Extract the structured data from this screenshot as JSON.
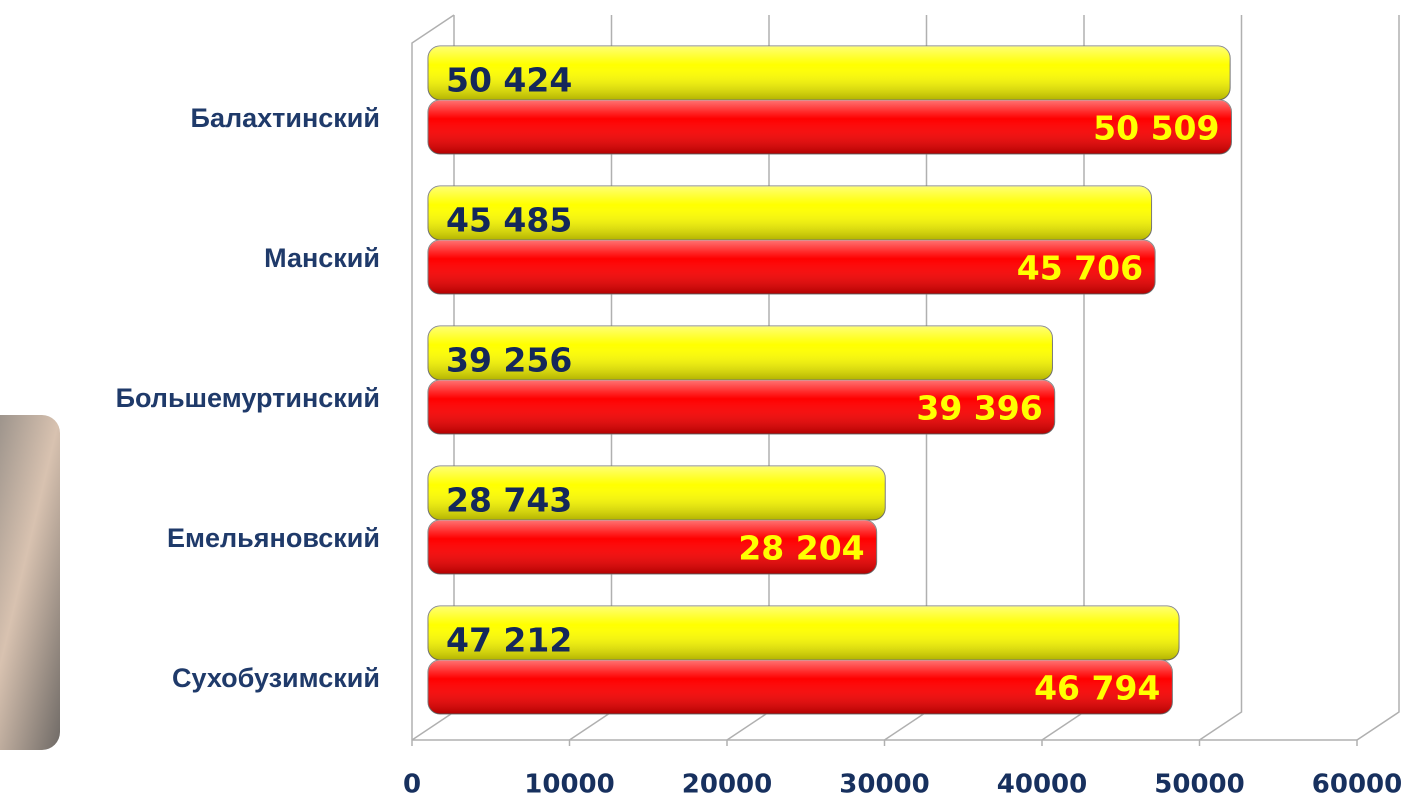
{
  "chart_data": {
    "type": "bar",
    "orientation": "horizontal",
    "categories": [
      "Балахтинский",
      "Манский",
      "Большемуртинский",
      "Емельяновский",
      "Сухобузимский"
    ],
    "series": [
      {
        "color": "#ffff00",
        "values": [
          50424,
          45485,
          39256,
          28743,
          47212
        ],
        "value_labels": [
          "50 424",
          "45 485",
          "39 256",
          "28 743",
          "47 212"
        ]
      },
      {
        "color": "#ff0000",
        "values": [
          50509,
          45706,
          39396,
          28204,
          46794
        ],
        "value_labels": [
          "50 509",
          "45 706",
          "39 396",
          "28 204",
          "46 794"
        ]
      }
    ],
    "xlim": [
      0,
      60000
    ],
    "xticks": [
      0,
      10000,
      20000,
      30000,
      40000,
      50000,
      60000
    ],
    "grid": true
  }
}
